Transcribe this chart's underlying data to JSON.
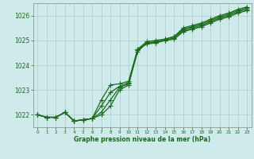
{
  "xlabel": "Graphe pression niveau de la mer (hPa)",
  "x": [
    0,
    1,
    2,
    3,
    4,
    5,
    6,
    7,
    8,
    9,
    10,
    11,
    12,
    13,
    14,
    15,
    16,
    17,
    18,
    19,
    20,
    21,
    22,
    23
  ],
  "line1": [
    1022.0,
    1021.9,
    1021.9,
    1022.1,
    1021.75,
    1021.8,
    1021.85,
    1022.0,
    1022.35,
    1023.0,
    1023.2,
    1024.65,
    1024.85,
    1024.9,
    1025.0,
    1025.05,
    1025.35,
    1025.45,
    1025.55,
    1025.7,
    1025.85,
    1025.95,
    1026.1,
    1026.2
  ],
  "line2": [
    1022.0,
    1021.9,
    1021.9,
    1022.1,
    1021.75,
    1021.8,
    1021.85,
    1022.1,
    1022.6,
    1023.1,
    1023.25,
    1024.55,
    1024.9,
    1024.9,
    1025.0,
    1025.1,
    1025.4,
    1025.5,
    1025.6,
    1025.75,
    1025.9,
    1026.0,
    1026.15,
    1026.25
  ],
  "line3": [
    1022.0,
    1021.9,
    1021.9,
    1022.1,
    1021.75,
    1021.8,
    1021.85,
    1022.35,
    1022.9,
    1023.15,
    1023.3,
    1024.6,
    1024.9,
    1024.95,
    1025.05,
    1025.15,
    1025.45,
    1025.55,
    1025.65,
    1025.8,
    1025.95,
    1026.05,
    1026.2,
    1026.3
  ],
  "line4": [
    1022.0,
    1021.9,
    1021.9,
    1022.1,
    1021.75,
    1021.8,
    1021.85,
    1022.6,
    1023.2,
    1023.25,
    1023.35,
    1024.65,
    1024.95,
    1025.0,
    1025.05,
    1025.15,
    1025.5,
    1025.6,
    1025.7,
    1025.85,
    1026.0,
    1026.1,
    1026.25,
    1026.35
  ],
  "ylim": [
    1021.5,
    1026.5
  ],
  "yticks": [
    1022,
    1023,
    1024,
    1025,
    1026
  ],
  "xticks": [
    0,
    1,
    2,
    3,
    4,
    5,
    6,
    7,
    8,
    9,
    10,
    11,
    12,
    13,
    14,
    15,
    16,
    17,
    18,
    19,
    20,
    21,
    22,
    23
  ],
  "line_color": "#1a6b1a",
  "bg_color": "#ceeaea",
  "grid_color": "#b0c8c8",
  "label_color": "#1a6b1a",
  "markersize": 2.2,
  "linewidth": 0.9,
  "figwidth": 3.2,
  "figheight": 2.0,
  "dpi": 100
}
